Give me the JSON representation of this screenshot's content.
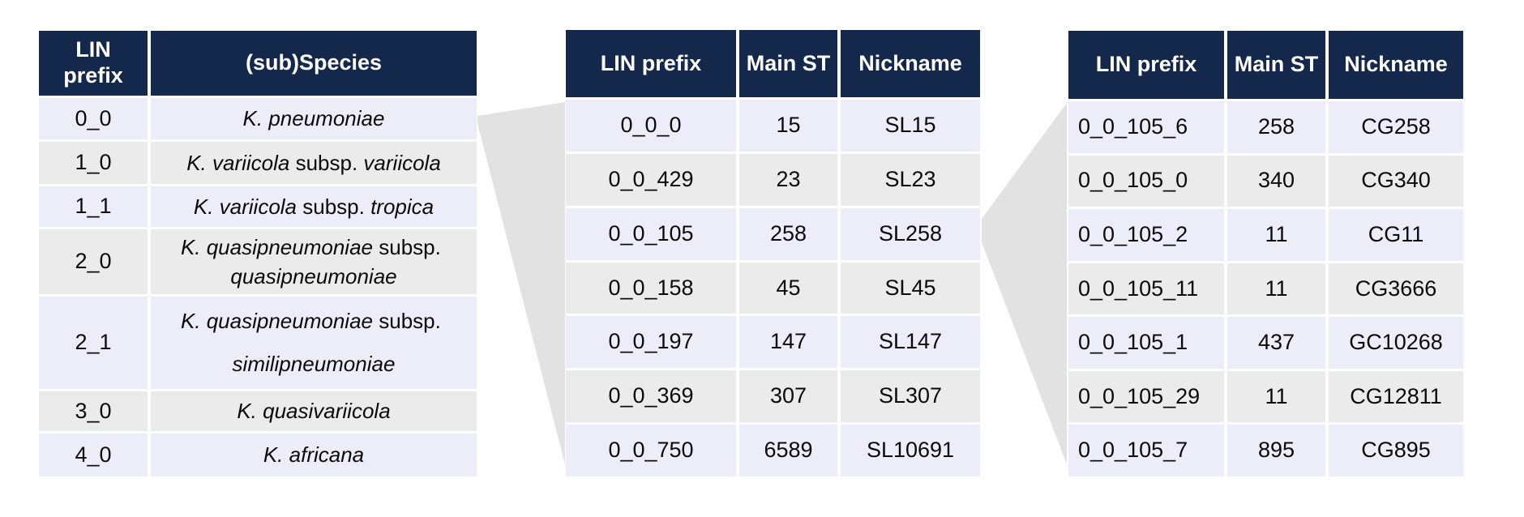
{
  "colors": {
    "header-bg": "#13284B",
    "row-a": "#EDEDFA",
    "row-b": "#EBEBEB",
    "connector": "#E2E2E2",
    "text": "#0A0A0A"
  },
  "species_table": {
    "headers": [
      "LIN prefix",
      "(sub)Species"
    ],
    "rows": [
      {
        "lin": "0_0",
        "species": [
          {
            "text": "K. pneumoniae",
            "italic": true
          }
        ]
      },
      {
        "lin": "1_0",
        "species": [
          {
            "text": "K. variicola",
            "italic": true
          },
          {
            "text": " subsp. ",
            "italic": false
          },
          {
            "text": "variicola",
            "italic": true
          }
        ]
      },
      {
        "lin": "1_1",
        "species": [
          {
            "text": "K. variicola",
            "italic": true
          },
          {
            "text": " subsp. ",
            "italic": false
          },
          {
            "text": "tropica",
            "italic": true
          }
        ]
      },
      {
        "lin": "2_0",
        "species": [
          {
            "text": "K. quasipneumoniae",
            "italic": true
          },
          {
            "text": " subsp. ",
            "italic": false
          },
          {
            "text": "quasipneumoniae",
            "italic": true
          }
        ]
      },
      {
        "lin": "2_1",
        "species": [
          {
            "text": "K. quasipneumoniae",
            "italic": true
          },
          {
            "text": " subsp. ",
            "italic": false
          },
          {
            "text": "similipneumoniae",
            "italic": true
          }
        ]
      },
      {
        "lin": "3_0",
        "species": [
          {
            "text": "K. quasivariicola",
            "italic": true
          }
        ]
      },
      {
        "lin": "4_0",
        "species": [
          {
            "text": "K. africana",
            "italic": true
          }
        ]
      }
    ]
  },
  "sublineage_table": {
    "headers": [
      "LIN prefix",
      "Main ST",
      "Nickname"
    ],
    "rows": [
      [
        "0_0_0",
        "15",
        "SL15"
      ],
      [
        "0_0_429",
        "23",
        "SL23"
      ],
      [
        "0_0_105",
        "258",
        "SL258"
      ],
      [
        "0_0_158",
        "45",
        "SL45"
      ],
      [
        "0_0_197",
        "147",
        "SL147"
      ],
      [
        "0_0_369",
        "307",
        "SL307"
      ],
      [
        "0_0_750",
        "6589",
        "SL10691"
      ]
    ]
  },
  "clonal_group_table": {
    "headers": [
      "LIN prefix",
      "Main ST",
      "Nickname"
    ],
    "rows": [
      [
        "0_0_105_6",
        "258",
        "CG258"
      ],
      [
        "0_0_105_0",
        "340",
        "CG340"
      ],
      [
        "0_0_105_2",
        "11",
        "CG11"
      ],
      [
        "0_0_105_11",
        "11",
        "CG3666"
      ],
      [
        "0_0_105_1",
        "437",
        "GC10268"
      ],
      [
        "0_0_105_29",
        "11",
        "CG12811"
      ],
      [
        "0_0_105_7",
        "895",
        "CG895"
      ]
    ]
  }
}
